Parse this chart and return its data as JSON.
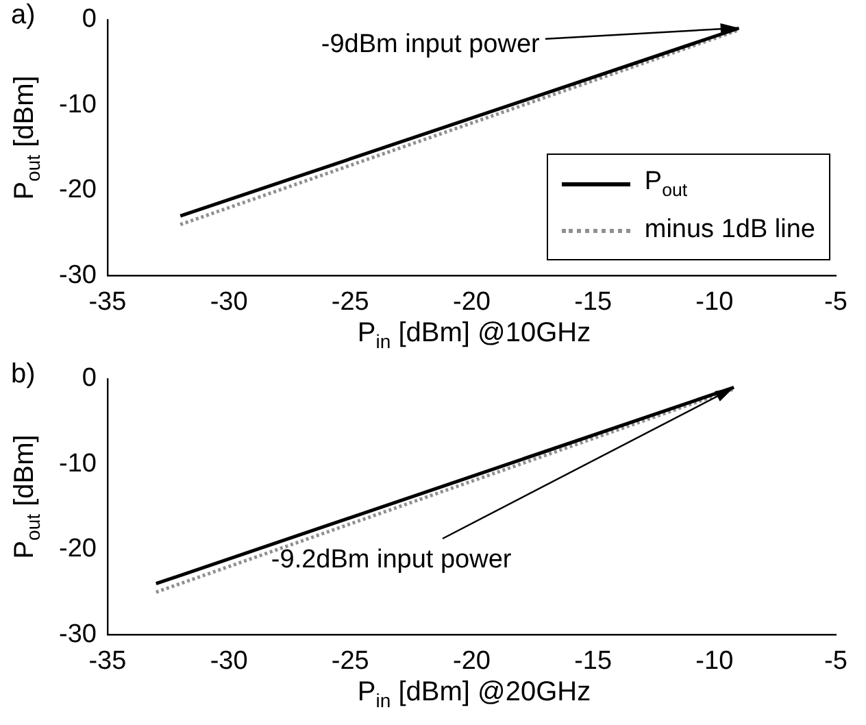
{
  "chart_data": [
    {
      "type": "line",
      "title": "a)",
      "xlabel": "P$_{in}$ [dBm] @10GHz",
      "ylabel": "P$_{out}$ [dBm]",
      "xlim": [
        -35,
        -5
      ],
      "xticks": [
        -35,
        -30,
        -25,
        -20,
        -15,
        -10,
        -5
      ],
      "ylim": [
        -30,
        0
      ],
      "yticks": [
        -30,
        -20,
        -10,
        0
      ],
      "grid": false,
      "legend": "bottom right",
      "marker": "none",
      "series": [
        {
          "name": "P$_{out}$",
          "color": "#000000",
          "line_style": "solid",
          "x": [
            -32,
            -9
          ],
          "values": [
            -23,
            -1
          ]
        },
        {
          "name": "minus 1dB line",
          "color": "#909090",
          "line_style": "dotted",
          "x": [
            -32,
            -9
          ],
          "values": [
            -24,
            -1.2
          ]
        }
      ],
      "annotations": [
        {
          "text": "-9dBm input power",
          "x": -9,
          "y": -1
        }
      ]
    },
    {
      "type": "line",
      "title": "b)",
      "xlabel": "P$_{in}$ [dBm] @20GHz",
      "ylabel": "P$_{out}$ [dBm]",
      "xlim": [
        -35,
        -5
      ],
      "xticks": [
        -35,
        -30,
        -25,
        -20,
        -15,
        -10,
        -5
      ],
      "ylim": [
        -30,
        0
      ],
      "yticks": [
        -30,
        -20,
        -10,
        0
      ],
      "grid": false,
      "legend": false,
      "marker": "none",
      "series": [
        {
          "color": "#000000",
          "line_style": "solid",
          "x": [
            -33,
            -9.2
          ],
          "values": [
            -24,
            -1
          ]
        },
        {
          "color": "#909090",
          "line_style": "dotted",
          "x": [
            -33,
            -9.2
          ],
          "values": [
            -25,
            -1.2
          ]
        }
      ],
      "annotations": [
        {
          "text": "-9.2dBm input power",
          "x": -9.2,
          "y": -1
        }
      ]
    }
  ]
}
